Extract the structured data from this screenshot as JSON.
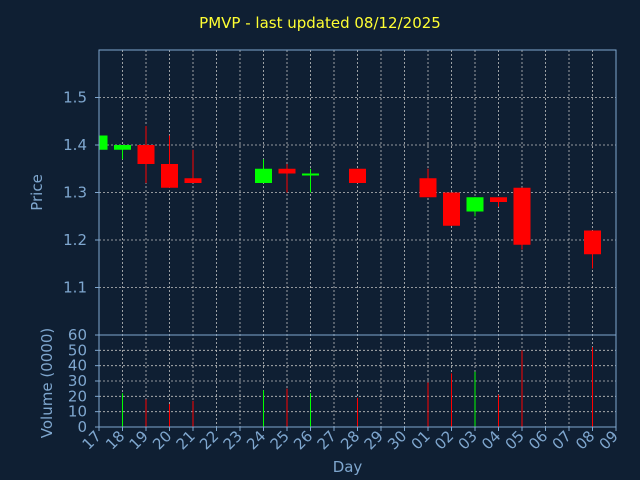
{
  "chart_data": {
    "type": "candlestick",
    "title": "PMVP - last updated 08/12/2025",
    "xlabel": "Day",
    "ylabel_price": "Price",
    "ylabel_volume": "Volume (0000)",
    "x_ticks": [
      "17",
      "18",
      "19",
      "20",
      "21",
      "22",
      "23",
      "24",
      "25",
      "26",
      "27",
      "28",
      "29",
      "30",
      "01",
      "02",
      "03",
      "04",
      "05",
      "06",
      "07",
      "08",
      "09"
    ],
    "price_ylim": [
      1.0,
      1.6
    ],
    "price_ticks": [
      "1.1",
      "1.2",
      "1.3",
      "1.4",
      "1.5"
    ],
    "volume_ylim": [
      0,
      60
    ],
    "volume_ticks": [
      "0",
      "10",
      "20",
      "30",
      "40",
      "50",
      "60"
    ],
    "grid": true,
    "colors": {
      "background": "#0f1f33",
      "title": "#ffff33",
      "axis_text": "#7fa7cf",
      "grid": "#c0c0c0",
      "up": "#00ff00",
      "down": "#ff0000"
    },
    "candles": [
      {
        "day": "17",
        "open": 1.39,
        "high": 1.42,
        "low": 1.39,
        "close": 1.42,
        "volume": 0
      },
      {
        "day": "18",
        "open": 1.39,
        "high": 1.4,
        "low": 1.37,
        "close": 1.4,
        "volume": 22
      },
      {
        "day": "19",
        "open": 1.4,
        "high": 1.44,
        "low": 1.32,
        "close": 1.36,
        "volume": 18
      },
      {
        "day": "20",
        "open": 1.36,
        "high": 1.42,
        "low": 1.31,
        "close": 1.31,
        "volume": 15
      },
      {
        "day": "21",
        "open": 1.33,
        "high": 1.39,
        "low": 1.32,
        "close": 1.32,
        "volume": 17
      },
      {
        "day": "24",
        "open": 1.32,
        "high": 1.37,
        "low": 1.32,
        "close": 1.35,
        "volume": 24
      },
      {
        "day": "25",
        "open": 1.35,
        "high": 1.36,
        "low": 1.3,
        "close": 1.34,
        "volume": 25
      },
      {
        "day": "26",
        "open": 1.34,
        "high": 1.35,
        "low": 1.3,
        "close": 1.34,
        "volume": 22
      },
      {
        "day": "28",
        "open": 1.35,
        "high": 1.35,
        "low": 1.32,
        "close": 1.32,
        "volume": 19
      },
      {
        "day": "01",
        "open": 1.33,
        "high": 1.35,
        "low": 1.29,
        "close": 1.29,
        "volume": 29
      },
      {
        "day": "02",
        "open": 1.3,
        "high": 1.3,
        "low": 1.23,
        "close": 1.23,
        "volume": 35
      },
      {
        "day": "03",
        "open": 1.26,
        "high": 1.29,
        "low": 1.25,
        "close": 1.29,
        "volume": 36
      },
      {
        "day": "04",
        "open": 1.29,
        "high": 1.29,
        "low": 1.27,
        "close": 1.28,
        "volume": 21
      },
      {
        "day": "05",
        "open": 1.31,
        "high": 1.31,
        "low": 1.18,
        "close": 1.19,
        "volume": 50
      },
      {
        "day": "08",
        "open": 1.22,
        "high": 1.22,
        "low": 1.14,
        "close": 1.17,
        "volume": 52
      }
    ]
  }
}
